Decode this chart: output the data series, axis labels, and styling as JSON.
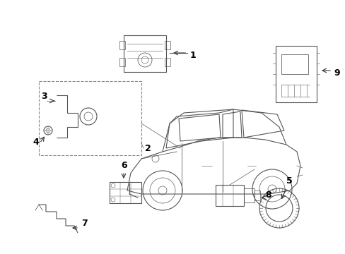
{
  "title": "",
  "bg_color": "#ffffff",
  "line_color": "#555555",
  "lw": 0.8,
  "parts": {
    "part1_label": "1",
    "part2_label": "2",
    "part3_label": "3",
    "part4_label": "4",
    "part5_label": "5",
    "part6_label": "6",
    "part7_label": "7",
    "part8_label": "8",
    "part9_label": "9"
  },
  "arrow_color": "#333333",
  "text_color": "#000000",
  "font_size": 9
}
